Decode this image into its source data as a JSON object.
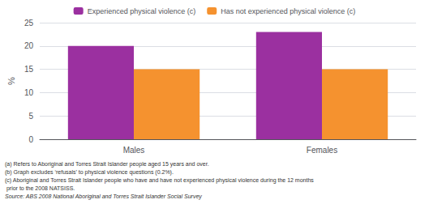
{
  "chart_data": {
    "type": "bar",
    "categories": [
      "Males",
      "Females"
    ],
    "series": [
      {
        "name": "Experienced physical violence (c)",
        "color": "#9B30A0",
        "values": [
          20,
          23
        ]
      },
      {
        "name": "Has not experienced physical violence (c)",
        "color": "#F5922F",
        "values": [
          15,
          15
        ]
      }
    ],
    "ylabel": "%",
    "ylim": [
      0,
      25
    ],
    "yticks": [
      0,
      5,
      10,
      15,
      20,
      25
    ],
    "grid": true,
    "legend": "top",
    "footnotes": [
      "(a) Refers to Aboriginal and Torres Strait Islander people aged 15 years and over.",
      "(b) Graph excludes ‘refusals’ to physical violence questions (0.2%).",
      "(c) Aboriginal and Torres Strait Islander people who have and have not experienced physical violence during the 12 months",
      " prior to the 2008 NATSISS."
    ],
    "source": "Source: ABS 2008 National Aboriginal and Torres Strait Islander Social Survey"
  }
}
